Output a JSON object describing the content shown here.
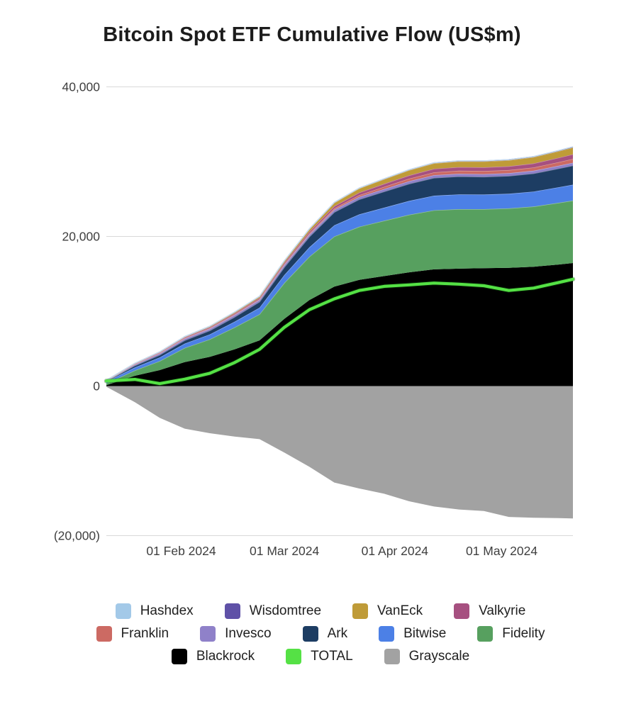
{
  "title": "Bitcoin Spot ETF Cumulative Flow (US$m)",
  "accent_colors": {
    "grid": "#d9d9d9",
    "axis_text": "#3f3f3f",
    "title_text": "#1c1c1c"
  },
  "chart_data": {
    "type": "area",
    "stacked": true,
    "title": "Bitcoin Spot ETF Cumulative Flow (US$m)",
    "xlabel": "",
    "ylabel": "",
    "ylim": [
      -20000,
      40000
    ],
    "grid": "horizontal",
    "legend_position": "bottom",
    "x": {
      "dates": [
        "11 Jan 2024",
        "19 Jan 2024",
        "26 Jan 2024",
        "02 Feb 2024",
        "09 Feb 2024",
        "16 Feb 2024",
        "23 Feb 2024",
        "01 Mar 2024",
        "08 Mar 2024",
        "15 Mar 2024",
        "22 Mar 2024",
        "29 Mar 2024",
        "05 Apr 2024",
        "12 Apr 2024",
        "19 Apr 2024",
        "26 Apr 2024",
        "03 May 2024",
        "10 May 2024",
        "17 May 2024",
        "21 May 2024"
      ],
      "day_offsets": [
        0,
        8,
        15,
        22,
        29,
        36,
        43,
        50,
        57,
        64,
        71,
        78,
        85,
        92,
        99,
        106,
        113,
        120,
        127,
        131
      ],
      "total_days": 131
    },
    "yticks": [
      {
        "value": 40000,
        "label": "40,000"
      },
      {
        "value": 20000,
        "label": "20,000"
      },
      {
        "value": 0,
        "label": "0"
      },
      {
        "value": -20000,
        "label": "(20,000)"
      }
    ],
    "xticks": [
      {
        "day": 21,
        "label": "01 Feb 2024"
      },
      {
        "day": 50,
        "label": "01 Mar 2024"
      },
      {
        "day": 81,
        "label": "01 Apr 2024"
      },
      {
        "day": 111,
        "label": "01 May 2024"
      }
    ],
    "series": [
      {
        "name": "Grayscale",
        "role": "negative-area",
        "color": "#a2a2a2",
        "values": [
          -95,
          -2150,
          -4260,
          -5700,
          -6300,
          -6750,
          -7100,
          -8900,
          -10800,
          -12900,
          -13700,
          -14400,
          -15400,
          -16100,
          -16500,
          -16700,
          -17500,
          -17600,
          -17650,
          -17700
        ]
      },
      {
        "name": "Blackrock",
        "role": "stacked-area",
        "color": "#000000",
        "values": [
          112,
          1370,
          2130,
          3200,
          3900,
          4900,
          6100,
          9000,
          11500,
          13300,
          14200,
          14700,
          15200,
          15600,
          15700,
          15750,
          15800,
          15950,
          16250,
          16450
        ]
      },
      {
        "name": "Fidelity",
        "role": "stacked-area",
        "color": "#57a05f",
        "values": [
          227,
          720,
          1220,
          1900,
          2350,
          2950,
          3500,
          4800,
          5800,
          6700,
          7100,
          7400,
          7700,
          7900,
          7950,
          7900,
          7950,
          8050,
          8250,
          8350
        ]
      },
      {
        "name": "Bitwise",
        "role": "stacked-area",
        "color": "#4c80e6",
        "values": [
          238,
          400,
          480,
          580,
          650,
          750,
          870,
          1050,
          1250,
          1500,
          1650,
          1750,
          1850,
          1950,
          1970,
          1950,
          1960,
          2000,
          2080,
          2120
        ]
      },
      {
        "name": "Ark",
        "role": "stacked-area",
        "color": "#1d3d63",
        "values": [
          65,
          230,
          320,
          420,
          500,
          620,
          780,
          1050,
          1400,
          1750,
          2000,
          2150,
          2280,
          2380,
          2400,
          2370,
          2380,
          2420,
          2500,
          2550
        ]
      },
      {
        "name": "Invesco",
        "role": "stacked-area",
        "color": "#8f81c9",
        "values": [
          26,
          150,
          200,
          230,
          250,
          265,
          275,
          290,
          310,
          325,
          335,
          345,
          355,
          360,
          362,
          360,
          362,
          365,
          370,
          380
        ]
      },
      {
        "name": "Franklin",
        "role": "stacked-area",
        "color": "#cc6a63",
        "values": [
          50,
          55,
          60,
          70,
          80,
          90,
          100,
          115,
          140,
          180,
          230,
          290,
          340,
          380,
          400,
          410,
          420,
          440,
          480,
          520
        ]
      },
      {
        "name": "Valkyrie",
        "role": "stacked-area",
        "color": "#a65080",
        "values": [
          29,
          60,
          85,
          105,
          125,
          145,
          165,
          195,
          240,
          300,
          350,
          400,
          440,
          470,
          490,
          500,
          510,
          540,
          590,
          620
        ]
      },
      {
        "name": "VanEck",
        "role": "stacked-area",
        "color": "#bf9b38",
        "values": [
          11,
          45,
          70,
          95,
          120,
          150,
          185,
          230,
          330,
          450,
          550,
          620,
          690,
          740,
          770,
          790,
          810,
          840,
          880,
          900
        ]
      },
      {
        "name": "Wisdomtree",
        "role": "stacked-area",
        "color": "#5f51a7",
        "values": [
          7,
          10,
          12,
          15,
          17,
          19,
          22,
          28,
          35,
          45,
          55,
          62,
          68,
          72,
          75,
          77,
          79,
          82,
          86,
          90
        ]
      },
      {
        "name": "Hashdex",
        "role": "stacked-area",
        "color": "#a3c9e8",
        "values": [
          1,
          1,
          1,
          2,
          2,
          2,
          3,
          3,
          4,
          5,
          5,
          6,
          6,
          7,
          7,
          7,
          7,
          8,
          8,
          9
        ]
      }
    ],
    "total_line": {
      "name": "TOTAL",
      "color": "#55e145",
      "values": [
        671,
        891,
        318,
        917,
        1694,
        3141,
        4900,
        7861,
        10209,
        11655,
        12775,
        13323,
        13529,
        13759,
        13624,
        13414,
        12778,
        13095,
        13844,
        14289
      ]
    }
  },
  "legend": {
    "rows": [
      [
        "Hashdex",
        "Wisdomtree",
        "VanEck",
        "Valkyrie"
      ],
      [
        "Franklin",
        "Invesco",
        "Ark",
        "Bitwise",
        "Fidelity"
      ],
      [
        "Blackrock",
        "TOTAL",
        "Grayscale"
      ]
    ]
  }
}
